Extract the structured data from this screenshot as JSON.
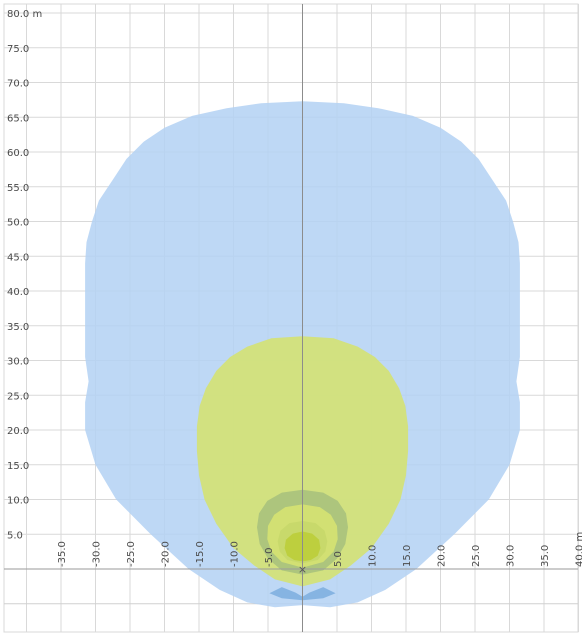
{
  "chart_data": {
    "type": "area",
    "title": "",
    "xlabel": "",
    "ylabel": "",
    "x_unit": "m",
    "y_unit": "m",
    "xlim": [
      -40,
      40
    ],
    "ylim": [
      -5,
      80
    ],
    "grid": true,
    "x_ticks": [
      {
        "value": -35,
        "label": "-35.0"
      },
      {
        "value": -30,
        "label": "-30.0"
      },
      {
        "value": -25,
        "label": "-25.0"
      },
      {
        "value": -20,
        "label": "-20.0"
      },
      {
        "value": -15,
        "label": "-15.0"
      },
      {
        "value": -10,
        "label": "-10.0"
      },
      {
        "value": -5,
        "label": "-5.0"
      },
      {
        "value": 5,
        "label": "5.0"
      },
      {
        "value": 10,
        "label": "10.0"
      },
      {
        "value": 15,
        "label": "15.0"
      },
      {
        "value": 20,
        "label": "20.0"
      },
      {
        "value": 25,
        "label": "25.0"
      },
      {
        "value": 30,
        "label": "30.0"
      },
      {
        "value": 35,
        "label": "35.0"
      },
      {
        "value": 40,
        "label": "40.0 m"
      }
    ],
    "y_ticks": [
      {
        "value": 5,
        "label": "5.0"
      },
      {
        "value": 10,
        "label": "10.0"
      },
      {
        "value": 15,
        "label": "15.0"
      },
      {
        "value": 20,
        "label": "20.0"
      },
      {
        "value": 25,
        "label": "25.0"
      },
      {
        "value": 30,
        "label": "30.0"
      },
      {
        "value": 35,
        "label": "35.0"
      },
      {
        "value": 40,
        "label": "40.0"
      },
      {
        "value": 45,
        "label": "45.0"
      },
      {
        "value": 50,
        "label": "50.0"
      },
      {
        "value": 55,
        "label": "55.0"
      },
      {
        "value": 60,
        "label": "60.0"
      },
      {
        "value": 65,
        "label": "65.0"
      },
      {
        "value": 70,
        "label": "70.0"
      },
      {
        "value": 75,
        "label": "75.0"
      },
      {
        "value": 80,
        "label": "80.0 m"
      }
    ],
    "zones": [
      {
        "color": "#b3d1f3",
        "opacity": 0.85,
        "points": [
          [
            0,
            67.3
          ],
          [
            -6,
            67
          ],
          [
            -11,
            66.3
          ],
          [
            -16,
            65.2
          ],
          [
            -20,
            63.5
          ],
          [
            -23,
            61.5
          ],
          [
            -25.5,
            59
          ],
          [
            -27.5,
            56
          ],
          [
            -29.5,
            53
          ],
          [
            -30.5,
            50
          ],
          [
            -31.3,
            47
          ],
          [
            -31.5,
            44
          ],
          [
            -31.5,
            41
          ],
          [
            -31.5,
            37
          ],
          [
            -31.5,
            33
          ],
          [
            -31.5,
            30.5
          ],
          [
            -31,
            27
          ],
          [
            -31.5,
            24
          ],
          [
            -31.5,
            20
          ],
          [
            -30,
            15
          ],
          [
            -27,
            10
          ],
          [
            -22,
            5
          ],
          [
            -16.5,
            0
          ],
          [
            -12,
            -3
          ],
          [
            -8,
            -4.8
          ],
          [
            -4,
            -5.5
          ],
          [
            0,
            -5.2
          ],
          [
            4,
            -5.5
          ],
          [
            8,
            -4.8
          ],
          [
            12,
            -3
          ],
          [
            16.5,
            0
          ],
          [
            22,
            5
          ],
          [
            27,
            10
          ],
          [
            30,
            15
          ],
          [
            31.5,
            20
          ],
          [
            31.5,
            24
          ],
          [
            31,
            27
          ],
          [
            31.5,
            30.5
          ],
          [
            31.5,
            33
          ],
          [
            31.5,
            37
          ],
          [
            31.5,
            41
          ],
          [
            31.5,
            44
          ],
          [
            31.3,
            47
          ],
          [
            30.5,
            50
          ],
          [
            29.5,
            53
          ],
          [
            27.5,
            56
          ],
          [
            25.5,
            59
          ],
          [
            23,
            61.5
          ],
          [
            20,
            63.5
          ],
          [
            16,
            65.2
          ],
          [
            11,
            66.3
          ],
          [
            6,
            67
          ]
        ]
      },
      {
        "color": "#d4e273",
        "opacity": 0.9,
        "points": [
          [
            0,
            33.5
          ],
          [
            -4.5,
            33.2
          ],
          [
            -8,
            32
          ],
          [
            -10.5,
            30.5
          ],
          [
            -12.5,
            28.5
          ],
          [
            -14,
            26
          ],
          [
            -14.9,
            23.5
          ],
          [
            -15.3,
            20.5
          ],
          [
            -15.3,
            17
          ],
          [
            -15,
            13.5
          ],
          [
            -14.2,
            10
          ],
          [
            -12.5,
            6.5
          ],
          [
            -10,
            3
          ],
          [
            -7,
            0.5
          ],
          [
            -4,
            -1.5
          ],
          [
            0,
            -2.5
          ],
          [
            4,
            -1.5
          ],
          [
            7,
            0.5
          ],
          [
            10,
            3
          ],
          [
            12.5,
            6.5
          ],
          [
            14.2,
            10
          ],
          [
            15,
            13.5
          ],
          [
            15.3,
            17
          ],
          [
            15.3,
            20.5
          ],
          [
            14.9,
            23.5
          ],
          [
            14,
            26
          ],
          [
            12.5,
            28.5
          ],
          [
            10.5,
            30.5
          ],
          [
            8,
            32
          ],
          [
            4.5,
            33.2
          ]
        ]
      },
      {
        "color": "#a9c27c",
        "opacity": 0.9,
        "points": [
          [
            0,
            11.4
          ],
          [
            -3,
            11
          ],
          [
            -5.1,
            9.8
          ],
          [
            -6.3,
            8
          ],
          [
            -6.6,
            6
          ],
          [
            -6.2,
            3.6
          ],
          [
            -5,
            1.5
          ],
          [
            -3,
            -0.2
          ],
          [
            0,
            -0.8
          ],
          [
            3,
            -0.2
          ],
          [
            5,
            1.5
          ],
          [
            6.2,
            3.6
          ],
          [
            6.6,
            6
          ],
          [
            6.3,
            8
          ],
          [
            5.1,
            9.8
          ],
          [
            3,
            11
          ]
        ]
      },
      {
        "color": "#d4e273",
        "opacity": 0.95,
        "points": [
          [
            0,
            9.3
          ],
          [
            -2.5,
            8.9
          ],
          [
            -4.1,
            7.8
          ],
          [
            -5,
            6.2
          ],
          [
            -5.1,
            4.3
          ],
          [
            -4.5,
            2.5
          ],
          [
            -3,
            1
          ],
          [
            0,
            0.2
          ],
          [
            3,
            1
          ],
          [
            4.5,
            2.5
          ],
          [
            5.1,
            4.3
          ],
          [
            5,
            6.2
          ],
          [
            4.1,
            7.8
          ],
          [
            2.5,
            8.9
          ]
        ]
      },
      {
        "color": "#c7d86a",
        "opacity": 0.95,
        "points": [
          [
            0,
            6.9
          ],
          [
            -1.9,
            6.6
          ],
          [
            -3.2,
            5.5
          ],
          [
            -3.6,
            4
          ],
          [
            -3.3,
            2.5
          ],
          [
            -2.2,
            1.3
          ],
          [
            0,
            0.8
          ],
          [
            2.2,
            1.3
          ],
          [
            3.3,
            2.5
          ],
          [
            3.6,
            4
          ],
          [
            3.2,
            5.5
          ],
          [
            1.9,
            6.6
          ]
        ]
      },
      {
        "color": "#bdcf3e",
        "opacity": 1.0,
        "points": [
          [
            0,
            5.4
          ],
          [
            -1.4,
            5.1
          ],
          [
            -2.4,
            4.2
          ],
          [
            -2.6,
            3
          ],
          [
            -2.2,
            1.9
          ],
          [
            -1.2,
            1.3
          ],
          [
            0,
            1.1
          ],
          [
            1.2,
            1.3
          ],
          [
            2.2,
            1.9
          ],
          [
            2.6,
            3
          ],
          [
            2.4,
            4.2
          ],
          [
            1.4,
            5.1
          ]
        ]
      },
      {
        "color": "#7fb0e0",
        "opacity": 0.9,
        "points": [
          [
            -4.8,
            -3.5
          ],
          [
            -3,
            -2.6
          ],
          [
            -1,
            -3.4
          ],
          [
            0,
            -4
          ],
          [
            1,
            -3.4
          ],
          [
            3,
            -2.6
          ],
          [
            4.8,
            -3.5
          ],
          [
            3,
            -4.2
          ],
          [
            0,
            -4.5
          ],
          [
            -3,
            -4.2
          ]
        ]
      }
    ],
    "origin_marker": {
      "x": 0,
      "y": 0,
      "symbol": "×"
    }
  }
}
